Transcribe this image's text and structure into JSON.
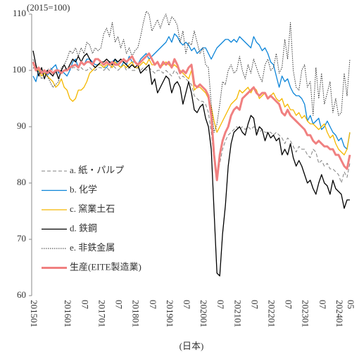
{
  "chart_data": {
    "type": "line",
    "y_axis_label": "(2015=100)",
    "x_axis_label": "(日本)",
    "categories": [
      "201501",
      null,
      null,
      null,
      null,
      null,
      null,
      null,
      null,
      null,
      null,
      null,
      "201601",
      null,
      null,
      null,
      null,
      null,
      "07",
      null,
      null,
      null,
      null,
      null,
      "201701",
      null,
      null,
      null,
      null,
      null,
      "07",
      null,
      null,
      null,
      null,
      null,
      "201801",
      null,
      null,
      null,
      null,
      null,
      "07",
      null,
      null,
      null,
      null,
      null,
      "201901",
      null,
      null,
      null,
      null,
      null,
      "07",
      null,
      null,
      null,
      null,
      null,
      "202001",
      null,
      null,
      null,
      null,
      null,
      "07",
      null,
      null,
      null,
      null,
      null,
      "202101",
      null,
      null,
      null,
      null,
      null,
      "07",
      null,
      null,
      null,
      null,
      null,
      "202201",
      null,
      null,
      null,
      null,
      null,
      "07",
      null,
      null,
      null,
      null,
      null,
      "202301",
      null,
      null,
      null,
      null,
      null,
      "07",
      null,
      null,
      null,
      null,
      null,
      "202401",
      null,
      null,
      null,
      "05"
    ],
    "ylim": [
      60,
      110
    ],
    "yticks": [
      60,
      70,
      80,
      90,
      100,
      110
    ],
    "grid": false,
    "legend": "lower-left",
    "series": [
      {
        "name": "a. 紙・パルプ",
        "color": "#808080",
        "dash": "dashed",
        "width": 1,
        "values": [
          102,
          100.5,
          100,
          100,
          99.5,
          100,
          100.5,
          100,
          99.5,
          100,
          100,
          100,
          100.5,
          100,
          100.5,
          100.5,
          100,
          100.5,
          100,
          100,
          100.5,
          100,
          100,
          100.5,
          100.5,
          100,
          100.5,
          100,
          101,
          100.5,
          100,
          100.5,
          101,
          100,
          100.5,
          100,
          100,
          100.5,
          100,
          100.5,
          100,
          100.5,
          100,
          99.5,
          100,
          100,
          99.5,
          100,
          99.5,
          99,
          100,
          99.5,
          98.5,
          99,
          98.5,
          98,
          97.5,
          95.5,
          95,
          94.5,
          94.5,
          94,
          92.5,
          89,
          84,
          81,
          83.5,
          86,
          87.5,
          88.5,
          89,
          89.5,
          90,
          89.5,
          90,
          89.5,
          90,
          89.5,
          90,
          89.5,
          89,
          89.5,
          89,
          89,
          89,
          88.5,
          89,
          88.5,
          88,
          87,
          88,
          87.5,
          86.5,
          85.5,
          86.5,
          86,
          86,
          85,
          84.5,
          86,
          85.5,
          83.5,
          84,
          83,
          83.5,
          82.5,
          82.5,
          82,
          81.5,
          80,
          82,
          81,
          83.5
        ]
      },
      {
        "name": "b. 化学",
        "color": "#0b84d8",
        "dash": "solid",
        "width": 1.3,
        "values": [
          99,
          98,
          100,
          99.5,
          100,
          99,
          100,
          100.5,
          101,
          99.5,
          100,
          99.5,
          99,
          100,
          101.5,
          102,
          100.5,
          101.5,
          101,
          102,
          102,
          101.5,
          101,
          101,
          101,
          100.5,
          100.5,
          101.5,
          101.5,
          102,
          101,
          100.5,
          101.5,
          101,
          102.5,
          101.5,
          101.5,
          101,
          102,
          102.5,
          103,
          102,
          102.5,
          103,
          103.5,
          104,
          104.5,
          105,
          106,
          105,
          106.5,
          106,
          105,
          104.5,
          105,
          104.5,
          103.5,
          104,
          103,
          103.5,
          104,
          104,
          103,
          102,
          103,
          104,
          104.5,
          105,
          105.5,
          105.5,
          105,
          105.5,
          105,
          106,
          105.5,
          105,
          104.5,
          104,
          106,
          105,
          104.5,
          103.5,
          104,
          103,
          101.5,
          101,
          99,
          97,
          99,
          98,
          98.5,
          97,
          96,
          95.5,
          95.5,
          95,
          94,
          91,
          92,
          90.5,
          91,
          91.5,
          89.5,
          90,
          91,
          90,
          89,
          88.5,
          87.5,
          88,
          86.5,
          86,
          89
        ]
      },
      {
        "name": "c. 窯業土石",
        "color": "#f5b800",
        "dash": "solid",
        "width": 1.3,
        "values": [
          101,
          100.5,
          100,
          99,
          99.5,
          99,
          98.5,
          98,
          97,
          97.5,
          98.5,
          97,
          96.5,
          95,
          94.5,
          95,
          96.5,
          96.5,
          97,
          98,
          99.5,
          100,
          100.5,
          101,
          101,
          100.5,
          101,
          101,
          100.5,
          101.5,
          101,
          100.5,
          101,
          100.5,
          101,
          101.5,
          100.5,
          100.5,
          101,
          101.5,
          101,
          102,
          101,
          101,
          101.5,
          100.5,
          101,
          101.5,
          101,
          100.5,
          101,
          100.5,
          100,
          99.5,
          99,
          98.5,
          100,
          96.5,
          97,
          97,
          96.5,
          96,
          95,
          93.5,
          91,
          89,
          90,
          91,
          92,
          93,
          94,
          94.5,
          95,
          96.5,
          96,
          96.5,
          97,
          96,
          97,
          96.5,
          95,
          95.5,
          96,
          95,
          95.5,
          96,
          95,
          94.5,
          95,
          93.5,
          94,
          93,
          93,
          92,
          92.5,
          91.5,
          92,
          91,
          90.5,
          90.5,
          90,
          89.5,
          90,
          90.5,
          89,
          88,
          88.5,
          87,
          86,
          85.5,
          85,
          86,
          89
        ]
      },
      {
        "name": "d. 鉄鋼",
        "color": "#000000",
        "dash": "solid",
        "width": 1.3,
        "values": [
          103.5,
          101,
          99,
          100.5,
          98.5,
          100,
          99.5,
          99,
          100,
          98.5,
          100,
          101,
          100,
          101,
          102,
          101.5,
          102.5,
          101.5,
          102.5,
          103,
          102,
          101,
          100.5,
          101,
          101.5,
          101.5,
          102,
          101.5,
          101,
          102,
          101.5,
          102,
          101.5,
          101,
          100.5,
          101,
          100.5,
          101,
          99.5,
          100,
          100.5,
          101,
          97.5,
          98.5,
          96,
          97,
          98,
          99,
          98.5,
          96,
          97.5,
          98,
          97,
          94,
          96,
          98,
          96,
          93,
          92.5,
          93.5,
          94,
          91.5,
          90,
          86,
          75,
          64,
          63.5,
          71,
          76,
          83,
          87,
          89,
          89.5,
          90,
          89,
          88.5,
          90.5,
          92,
          91.5,
          88.5,
          90,
          89.5,
          87.5,
          89,
          88,
          88.5,
          87.5,
          88,
          85,
          86,
          85,
          87,
          84.5,
          83,
          84,
          83,
          81.5,
          80,
          80.5,
          79,
          78,
          80,
          81.5,
          80,
          79.5,
          78,
          80.5,
          79,
          78.5,
          78,
          75.5,
          77,
          77
        ]
      },
      {
        "name": "e. 非鉄金属",
        "color": "#333333",
        "dash": "dotted",
        "width": 1,
        "values": [
          100.5,
          100,
          99.5,
          98.5,
          99,
          99,
          98,
          97,
          97.5,
          98,
          100.5,
          101,
          102,
          103.5,
          103,
          104,
          102.5,
          104,
          103,
          105,
          104.5,
          103,
          104,
          103.5,
          104,
          106.5,
          107.5,
          106,
          108.5,
          105,
          106,
          104,
          105.5,
          103,
          104,
          102.5,
          103.5,
          104,
          106,
          108.5,
          110.5,
          110,
          107,
          108,
          109,
          107.5,
          109,
          110,
          108,
          109.5,
          109,
          108,
          105,
          107,
          103,
          105,
          104.5,
          107,
          105,
          103,
          104,
          101,
          100.5,
          94,
          89,
          90.5,
          94,
          98,
          97.5,
          100,
          101,
          99.5,
          100,
          102.5,
          100,
          98.5,
          101,
          99.5,
          102,
          100.5,
          99,
          98,
          101,
          102,
          100,
          100.5,
          103,
          99.5,
          100.5,
          105.5,
          102,
          108.5,
          100,
          97,
          96.5,
          100,
          101,
          97,
          98,
          92,
          100.5,
          95,
          99.5,
          94,
          96,
          98,
          92.5,
          95,
          92,
          92.5,
          99.5,
          95.5,
          102
        ]
      },
      {
        "name": "生産(EITE製造業)",
        "color": "#f08080",
        "dash": "solid",
        "width": 3,
        "values": [
          101.5,
          100,
          100.5,
          99.5,
          100,
          99.5,
          100,
          99.5,
          100,
          100,
          99.5,
          100,
          100,
          100.5,
          100.8,
          101,
          100.5,
          101.5,
          101,
          101.5,
          101.5,
          101,
          102,
          102,
          101.5,
          101,
          101.5,
          101,
          101.5,
          101,
          101,
          101.5,
          102,
          101.5,
          102,
          102.5,
          101.5,
          101,
          101.5,
          102,
          102.5,
          103,
          102,
          101,
          101.5,
          100.5,
          101.5,
          101,
          101.5,
          100.5,
          102,
          101,
          99.5,
          100,
          99.5,
          100.5,
          101,
          97.5,
          97,
          97.5,
          97,
          96.5,
          95.5,
          92,
          85,
          80.5,
          85,
          87.5,
          89,
          90,
          92,
          93,
          93.5,
          93,
          95,
          95.5,
          96,
          96.5,
          97,
          96,
          95.5,
          96,
          96,
          95,
          95.5,
          95,
          94.5,
          94,
          92.5,
          92,
          93,
          92,
          91.5,
          91,
          90.5,
          90,
          89.5,
          88.5,
          88.5,
          87.5,
          87,
          87.5,
          87,
          86.5,
          86.5,
          86,
          86,
          85,
          85,
          84,
          83,
          82.5,
          85
        ]
      }
    ]
  }
}
